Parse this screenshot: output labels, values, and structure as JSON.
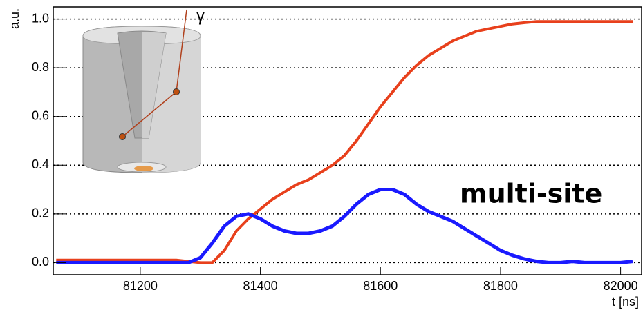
{
  "chart_data": {
    "type": "line",
    "x_label": "t [ns]",
    "y_label": "a.u.",
    "annotation": "multi-site",
    "inset_label": "γ",
    "x": [
      81060,
      81080,
      81100,
      81120,
      81140,
      81160,
      81180,
      81200,
      81220,
      81240,
      81260,
      81280,
      81300,
      81320,
      81340,
      81360,
      81380,
      81400,
      81420,
      81440,
      81460,
      81480,
      81500,
      81520,
      81540,
      81560,
      81580,
      81600,
      81620,
      81640,
      81660,
      81680,
      81700,
      81720,
      81740,
      81760,
      81780,
      81800,
      81820,
      81840,
      81860,
      81880,
      81900,
      81920,
      81940,
      81960,
      81980,
      82000,
      82020
    ],
    "series": [
      {
        "color": "#e8401c",
        "values": [
          0.01,
          0.01,
          0.01,
          0.01,
          0.01,
          0.01,
          0.01,
          0.01,
          0.01,
          0.01,
          0.01,
          0.005,
          0.0,
          0.0,
          0.05,
          0.13,
          0.18,
          0.22,
          0.26,
          0.29,
          0.32,
          0.34,
          0.37,
          0.4,
          0.44,
          0.5,
          0.57,
          0.64,
          0.7,
          0.76,
          0.81,
          0.85,
          0.88,
          0.91,
          0.93,
          0.95,
          0.96,
          0.97,
          0.98,
          0.985,
          0.99,
          0.99,
          0.99,
          0.99,
          0.99,
          0.99,
          0.99,
          0.99,
          0.99
        ]
      },
      {
        "color": "#1a1aff",
        "values": [
          0,
          0,
          0,
          0,
          0,
          0,
          0,
          0,
          0,
          0,
          0,
          0,
          0.02,
          0.08,
          0.15,
          0.19,
          0.2,
          0.18,
          0.15,
          0.13,
          0.12,
          0.12,
          0.13,
          0.15,
          0.19,
          0.24,
          0.28,
          0.3,
          0.3,
          0.28,
          0.24,
          0.21,
          0.19,
          0.17,
          0.14,
          0.11,
          0.08,
          0.05,
          0.03,
          0.015,
          0.005,
          0,
          0,
          0.005,
          0,
          0,
          0,
          0,
          0.005
        ]
      }
    ],
    "xlim": [
      81055,
      82035
    ],
    "ylim": [
      -0.05,
      1.05
    ],
    "xticks": [
      81200,
      81400,
      81600,
      81800,
      82000
    ],
    "yticks": [
      {
        "value": 0,
        "label": "0.0"
      },
      {
        "value": 0.2,
        "label": "0.2"
      },
      {
        "value": 0.4,
        "label": "0.4"
      },
      {
        "value": 0.6,
        "label": "0.6"
      },
      {
        "value": 0.8,
        "label": "0.8"
      },
      {
        "value": 1,
        "label": "1.0"
      }
    ],
    "grid": true
  }
}
